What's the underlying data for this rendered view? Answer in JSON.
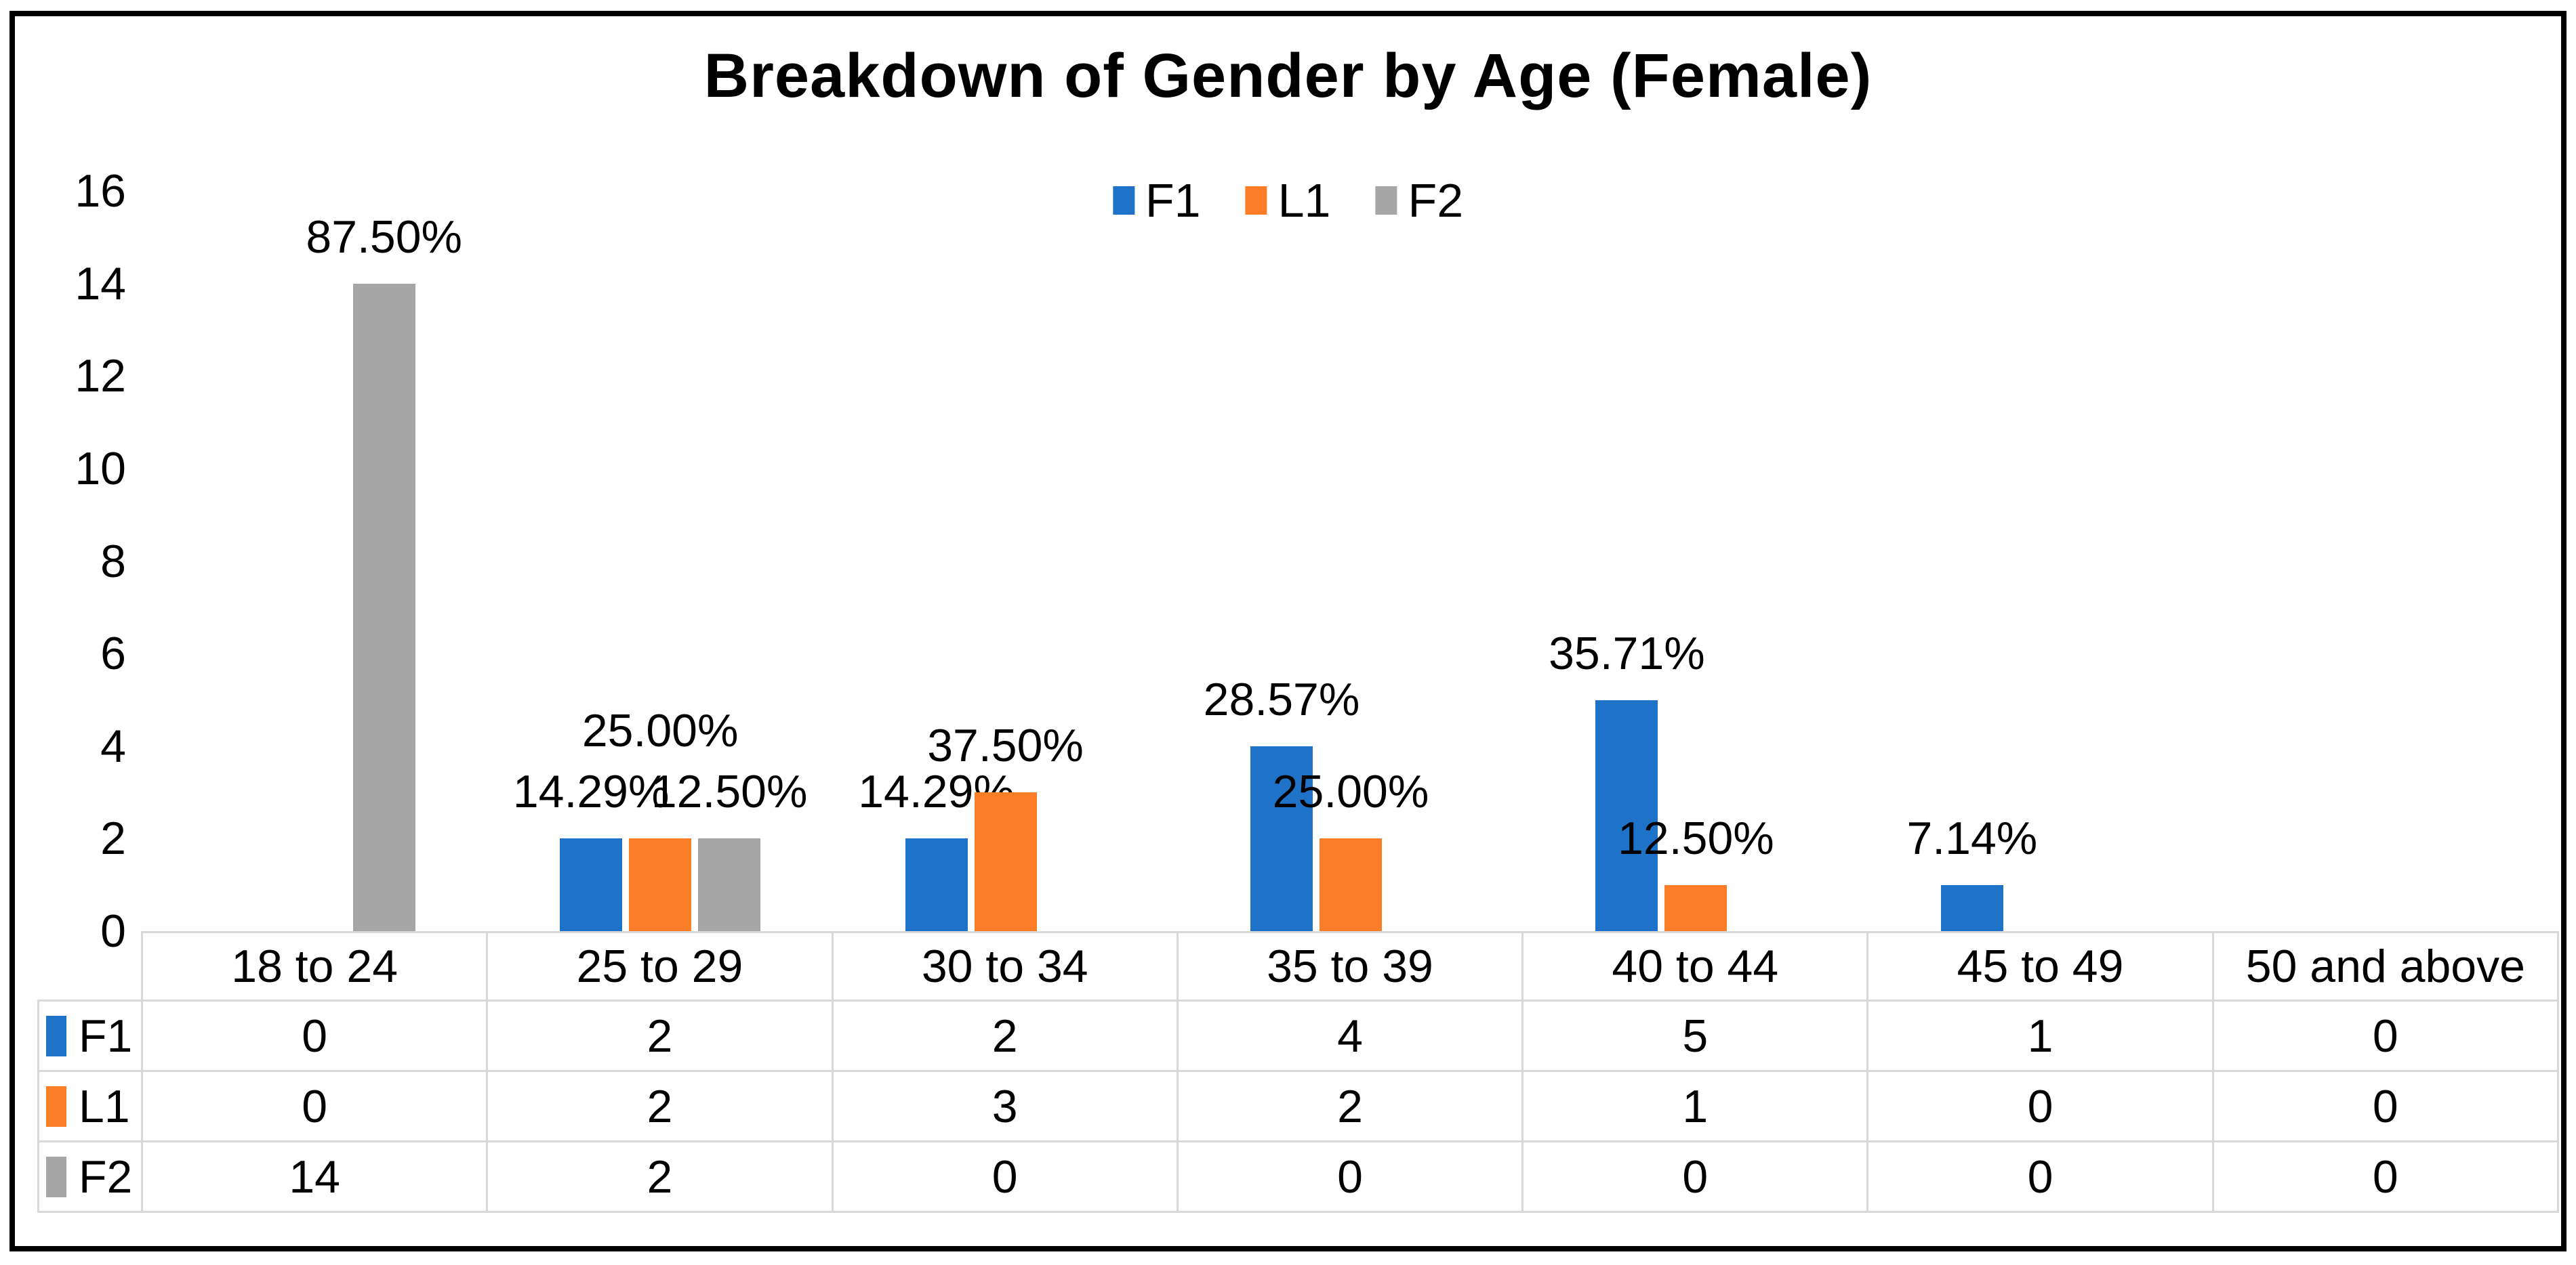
{
  "chart_data": {
    "type": "bar",
    "title": "Breakdown of Gender by Age (Female)",
    "categories": [
      "18 to 24",
      "25 to 29",
      "30 to 34",
      "35 to 39",
      "40 to 44",
      "45 to 49",
      "50 and above"
    ],
    "series": [
      {
        "name": "F1",
        "color": "#1E73C8",
        "values": [
          0,
          2,
          2,
          4,
          5,
          1,
          0
        ],
        "data_labels": [
          "",
          "14.29%",
          "14.29%",
          "28.57%",
          "35.71%",
          "7.14%",
          ""
        ]
      },
      {
        "name": "L1",
        "color": "#FC7D28",
        "values": [
          0,
          2,
          3,
          2,
          1,
          0,
          0
        ],
        "data_labels": [
          "",
          "25.00%",
          "37.50%",
          "25.00%",
          "12.50%",
          "",
          ""
        ]
      },
      {
        "name": "F2",
        "color": "#A6A6A6",
        "values": [
          14,
          2,
          0,
          0,
          0,
          0,
          0
        ],
        "data_labels": [
          "87.50%",
          "12.50%",
          "",
          "",
          "",
          "",
          ""
        ]
      }
    ],
    "xlabel": "",
    "ylabel": "",
    "ylim": [
      0,
      16
    ],
    "yticks": [
      0,
      2,
      4,
      6,
      8,
      10,
      12,
      14,
      16
    ],
    "grid": false,
    "legend_position": "top-center",
    "legend_entries": [
      "F1",
      "L1",
      "F2"
    ],
    "data_table_shown": true,
    "label_raise": [
      [
        0,
        0,
        0,
        0,
        0,
        0,
        0
      ],
      [
        0,
        1,
        0,
        0,
        0,
        0,
        0
      ],
      [
        0,
        0,
        0,
        0,
        0,
        0,
        0
      ]
    ],
    "colors": {
      "text": "#000000",
      "gridline": "#D9D9D9",
      "frame_border": "#000000",
      "background": "#FFFFFF"
    }
  }
}
